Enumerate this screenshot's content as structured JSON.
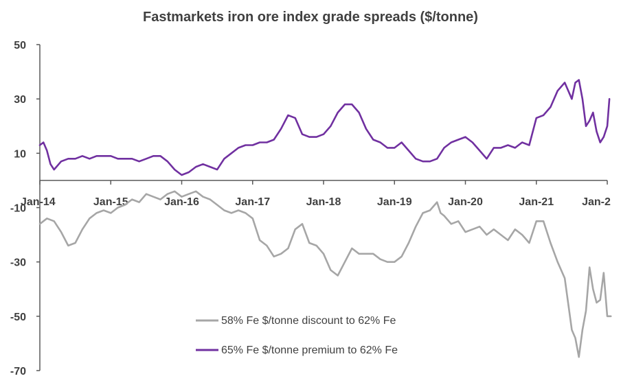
{
  "chart_data": {
    "type": "line",
    "title": "Fastmarkets iron ore index grade spreads ($/tonne)",
    "xlabel": "",
    "ylabel": "",
    "ylim": [
      -70,
      50
    ],
    "yticks": [
      50,
      30,
      10,
      -10,
      -30,
      -50,
      -70
    ],
    "xlim": [
      2014.0,
      2022.0
    ],
    "xticks": [
      {
        "label": "Jan-14",
        "x": 2014.0
      },
      {
        "label": "Jan-15",
        "x": 2015.0
      },
      {
        "label": "Jan-16",
        "x": 2016.0
      },
      {
        "label": "Jan-17",
        "x": 2017.0
      },
      {
        "label": "Jan-18",
        "x": 2018.0
      },
      {
        "label": "Jan-19",
        "x": 2019.0
      },
      {
        "label": "Jan-20",
        "x": 2020.0
      },
      {
        "label": "Jan-21",
        "x": 2021.0
      },
      {
        "label": "Jan-2",
        "x": 2022.0
      }
    ],
    "grid": false,
    "legend_position": "bottom-center",
    "series": [
      {
        "name": "58% Fe $/tonne discount to 62% Fe",
        "color": "#a6a6a6",
        "x": [
          2014.0,
          2014.1,
          2014.2,
          2014.3,
          2014.4,
          2014.5,
          2014.6,
          2014.7,
          2014.8,
          2014.9,
          2015.0,
          2015.1,
          2015.2,
          2015.3,
          2015.4,
          2015.5,
          2015.6,
          2015.7,
          2015.8,
          2015.9,
          2016.0,
          2016.1,
          2016.2,
          2016.3,
          2016.4,
          2016.5,
          2016.6,
          2016.7,
          2016.8,
          2016.9,
          2017.0,
          2017.1,
          2017.2,
          2017.3,
          2017.4,
          2017.5,
          2017.6,
          2017.7,
          2017.8,
          2017.9,
          2018.0,
          2018.1,
          2018.2,
          2018.3,
          2018.4,
          2018.5,
          2018.6,
          2018.7,
          2018.8,
          2018.9,
          2019.0,
          2019.1,
          2019.2,
          2019.3,
          2019.4,
          2019.5,
          2019.6,
          2019.65,
          2019.7,
          2019.8,
          2019.9,
          2020.0,
          2020.1,
          2020.2,
          2020.3,
          2020.4,
          2020.5,
          2020.6,
          2020.7,
          2020.8,
          2020.9,
          2021.0,
          2021.1,
          2021.2,
          2021.3,
          2021.4,
          2021.5,
          2021.55,
          2021.6,
          2021.65,
          2021.7,
          2021.75,
          2021.8,
          2021.85,
          2021.9,
          2021.95,
          2022.0,
          2022.05
        ],
        "values": [
          -16,
          -14,
          -15,
          -19,
          -24,
          -23,
          -18,
          -14,
          -12,
          -11,
          -12,
          -10,
          -9,
          -7,
          -8,
          -5,
          -6,
          -7,
          -5,
          -4,
          -6,
          -5,
          -4,
          -6,
          -7,
          -9,
          -11,
          -12,
          -11,
          -12,
          -14,
          -22,
          -24,
          -28,
          -27,
          -25,
          -18,
          -16,
          -23,
          -24,
          -27,
          -33,
          -35,
          -30,
          -25,
          -27,
          -27,
          -27,
          -29,
          -30,
          -30,
          -28,
          -23,
          -17,
          -12,
          -11,
          -8,
          -12,
          -13,
          -16,
          -15,
          -19,
          -18,
          -17,
          -20,
          -18,
          -20,
          -22,
          -18,
          -20,
          -23,
          -15,
          -15,
          -23,
          -30,
          -36,
          -55,
          -58,
          -65,
          -55,
          -48,
          -32,
          -40,
          -45,
          -44,
          -34,
          -50,
          -50
        ]
      },
      {
        "name": "65% Fe $/tonne premium to 62% Fe",
        "color": "#7030a0",
        "x": [
          2014.0,
          2014.05,
          2014.1,
          2014.15,
          2014.2,
          2014.3,
          2014.4,
          2014.5,
          2014.6,
          2014.7,
          2014.8,
          2014.9,
          2015.0,
          2015.1,
          2015.2,
          2015.3,
          2015.4,
          2015.5,
          2015.6,
          2015.7,
          2015.8,
          2015.9,
          2016.0,
          2016.1,
          2016.2,
          2016.3,
          2016.4,
          2016.5,
          2016.6,
          2016.7,
          2016.8,
          2016.9,
          2017.0,
          2017.1,
          2017.2,
          2017.3,
          2017.4,
          2017.5,
          2017.6,
          2017.7,
          2017.8,
          2017.9,
          2018.0,
          2018.1,
          2018.2,
          2018.3,
          2018.4,
          2018.5,
          2018.6,
          2018.7,
          2018.8,
          2018.9,
          2019.0,
          2019.1,
          2019.2,
          2019.3,
          2019.4,
          2019.5,
          2019.6,
          2019.7,
          2019.8,
          2019.9,
          2020.0,
          2020.1,
          2020.2,
          2020.3,
          2020.4,
          2020.5,
          2020.6,
          2020.7,
          2020.8,
          2020.9,
          2021.0,
          2021.1,
          2021.2,
          2021.3,
          2021.4,
          2021.5,
          2021.55,
          2021.6,
          2021.65,
          2021.7,
          2021.75,
          2021.8,
          2021.85,
          2021.9,
          2021.95,
          2022.0,
          2022.03
        ],
        "values": [
          13,
          14,
          11,
          6,
          4,
          7,
          8,
          8,
          9,
          8,
          9,
          9,
          9,
          8,
          8,
          8,
          7,
          8,
          9,
          9,
          7,
          4,
          2,
          3,
          5,
          6,
          5,
          4,
          8,
          10,
          12,
          13,
          13,
          14,
          14,
          15,
          19,
          24,
          23,
          17,
          16,
          16,
          17,
          20,
          25,
          28,
          28,
          25,
          19,
          15,
          14,
          12,
          12,
          14,
          11,
          8,
          7,
          7,
          8,
          12,
          14,
          15,
          16,
          14,
          11,
          8,
          12,
          12,
          13,
          12,
          14,
          13,
          23,
          24,
          27,
          33,
          36,
          30,
          36,
          37,
          30,
          20,
          22,
          25,
          18,
          14,
          16,
          20,
          30
        ]
      }
    ]
  }
}
